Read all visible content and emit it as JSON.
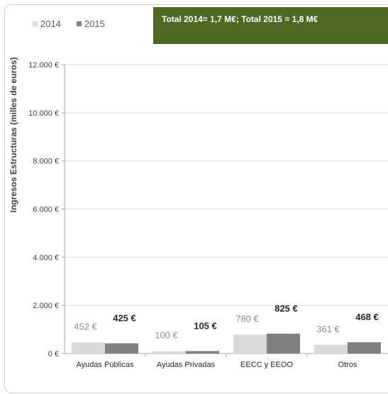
{
  "chart_data": {
    "type": "bar",
    "title": "",
    "annotation": "Total 2014= 1,7 M€; Total 2015 = 1,8 M€",
    "ylabel": "Ingresos Estructuras (milles de euros)",
    "xlabel": "",
    "ylim": [
      0,
      12000
    ],
    "yticks": [
      0,
      2000,
      4000,
      6000,
      8000,
      10000,
      12000
    ],
    "ytick_labels": [
      "0 €",
      "2.000 €",
      "4.000 €",
      "6.000 €",
      "8.000 €",
      "10.000 €",
      "12.000 €"
    ],
    "grid": true,
    "legend_position": "top-left",
    "categories": [
      "Ayudas Públicas",
      "Ayudas Privadas",
      "EECC y EEOO",
      "Otros"
    ],
    "series": [
      {
        "name": "2014",
        "color": "#d9d9d9",
        "values": [
          452,
          100,
          780,
          361
        ],
        "labels": [
          "452 €",
          "100 €",
          "780 €",
          "361 €"
        ]
      },
      {
        "name": "2015",
        "color": "#808080",
        "values": [
          425,
          105,
          825,
          468
        ],
        "labels": [
          "425 €",
          "105 €",
          "825 €",
          "468 €"
        ]
      }
    ]
  }
}
